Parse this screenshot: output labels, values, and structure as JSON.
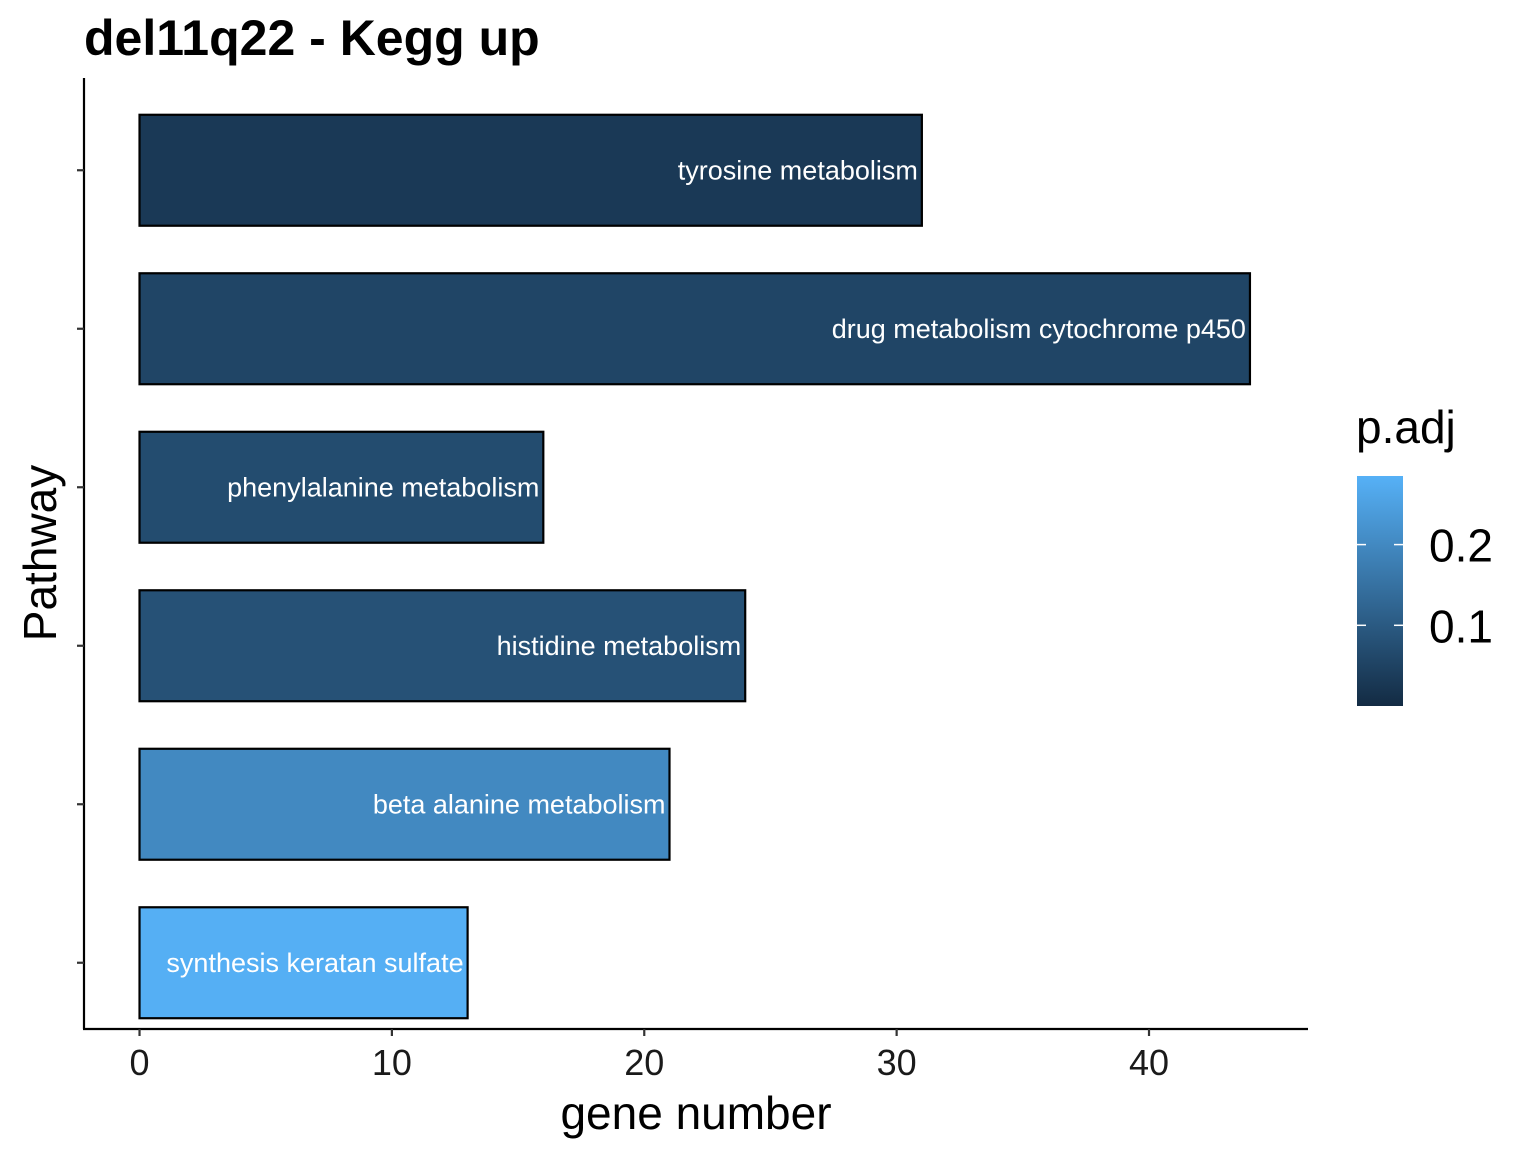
{
  "chart_data": {
    "type": "bar",
    "orientation": "horizontal",
    "title": "del11q22 - Kegg up",
    "xlabel": "gene number",
    "ylabel": "Pathway",
    "xlim": [
      -2.2,
      46.3
    ],
    "xticks": [
      0,
      10,
      20,
      30,
      40
    ],
    "grid": false,
    "legend": {
      "title": "p.adj",
      "position": "right",
      "range": [
        0.0,
        0.285
      ],
      "ticks": [
        0.1,
        0.2
      ],
      "tick_labels": [
        "0.1",
        "0.2"
      ],
      "low_color": "#132B43",
      "high_color": "#56B1F7"
    },
    "categories": [
      "tyrosine metabolism",
      "drug metabolism cytochrome p450",
      "phenylalanine metabolism",
      "histidine metabolism",
      "beta alanine metabolism",
      "synthesis keratan sulfate"
    ],
    "values": [
      31,
      44,
      16,
      24,
      21,
      13
    ],
    "p_adj": [
      0.03,
      0.055,
      0.07,
      0.08,
      0.2,
      0.28
    ]
  }
}
